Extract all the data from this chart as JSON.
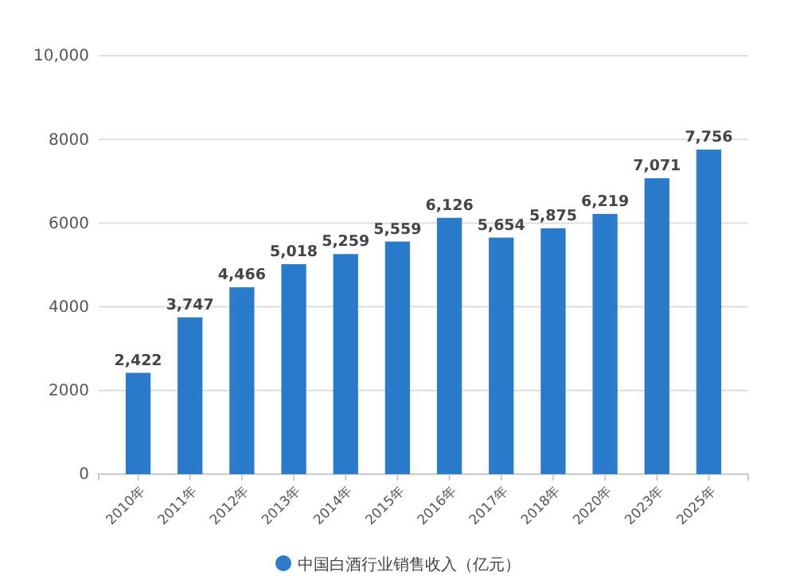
{
  "chart_data": {
    "type": "bar",
    "categories": [
      "2010年",
      "2011年",
      "2012年",
      "2013年",
      "2014年",
      "2015年",
      "2016年",
      "2017年",
      "2018年",
      "2020年",
      "2023年",
      "2025年"
    ],
    "series": [
      {
        "name": "中国白酒行业销售收入（亿元）",
        "color": "#2a7bc9",
        "values": [
          2422,
          3747,
          4466,
          5018,
          5259,
          5559,
          6126,
          5654,
          5875,
          6219,
          7071,
          7756
        ],
        "value_labels": [
          "2,422",
          "3,747",
          "4,466",
          "5,018",
          "5,259",
          "5,559",
          "6,126",
          "5,654",
          "5,875",
          "6,219",
          "7,071",
          "7,756"
        ]
      }
    ],
    "ylim": [
      0,
      10000
    ],
    "yticks": [
      0,
      2000,
      4000,
      6000,
      8000,
      {
        "value": 10000,
        "label": "10,000"
      }
    ],
    "grid": "y",
    "legend": "bottom"
  }
}
